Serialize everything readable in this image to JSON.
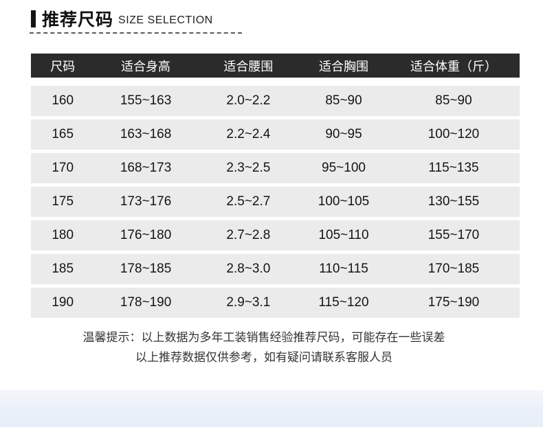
{
  "header": {
    "title_cn": "推荐尺码",
    "title_en": "SIZE SELECTION"
  },
  "table": {
    "headers": [
      "尺码",
      "适合身高",
      "适合腰围",
      "适合胸围",
      "适合体重（斤）"
    ],
    "rows": [
      [
        "160",
        "155~163",
        "2.0~2.2",
        "85~90",
        "85~90"
      ],
      [
        "165",
        "163~168",
        "2.2~2.4",
        "90~95",
        "100~120"
      ],
      [
        "170",
        "168~173",
        "2.3~2.5",
        "95~100",
        "115~135"
      ],
      [
        "175",
        "173~176",
        "2.5~2.7",
        "100~105",
        "130~155"
      ],
      [
        "180",
        "176~180",
        "2.7~2.8",
        "105~110",
        "155~170"
      ],
      [
        "185",
        "178~185",
        "2.8~3.0",
        "110~115",
        "170~185"
      ],
      [
        "190",
        "178~190",
        "2.9~3.1",
        "115~120",
        "175~190"
      ]
    ]
  },
  "notes": {
    "line1": "温馨提示：以上数据为多年工装销售经验推荐尺码，可能存在一些误差",
    "line2": "以上推荐数据仅供参考，如有疑问请联系客服人员"
  },
  "colors": {
    "table_header_bg": "#2b2b2b",
    "table_row_bg": "#ebebeb",
    "accent_bar": "#141414",
    "bottom_band": "#eaf0f9"
  }
}
